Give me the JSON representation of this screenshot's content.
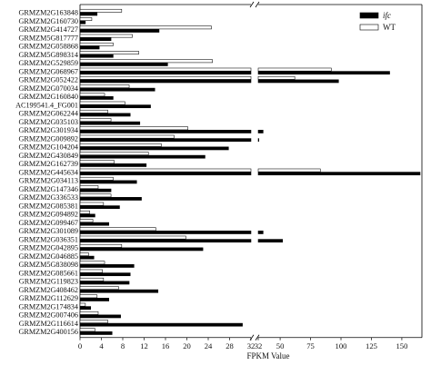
{
  "chart_data": {
    "type": "bar",
    "orientation": "horizontal",
    "xlabel": "FPKM Value",
    "x_axis_break": [
      32,
      32
    ],
    "x_ticks_low": [
      0,
      4,
      8,
      12,
      16,
      20,
      24,
      28,
      32
    ],
    "x_ticks_high": [
      32,
      50,
      75,
      100,
      125,
      150
    ],
    "x_tick_labels_low": [
      "0",
      "4",
      "8",
      "12",
      "16",
      "20",
      "24",
      "28",
      "32"
    ],
    "x_tick_labels_high": [
      "32",
      "50",
      "75",
      "100",
      "125",
      "150"
    ],
    "legend_position": "top-right",
    "series_colors": [
      "#000000",
      "#ffffff"
    ],
    "categories": [
      "GRMZM2G163848",
      "GRMZM2G160730",
      "GRMZM2G414727",
      "GRMZM5G817777",
      "GRMZM2G058868",
      "GRMZM5G898314",
      "GRMZM2G529859",
      "GRMZM2G068967",
      "GRMZM2G052422",
      "GRMZM2G070034",
      "GRMZM2G160840",
      "AC199541.4_FG001",
      "GRMZM2G062244",
      "GRMZM2G035103",
      "GRMZM2G301934",
      "GRMZM2G009892",
      "GRMZM2G104204",
      "GRMZM2G430849",
      "GRMZM2G162739",
      "GRMZM2G445634",
      "GRMZM2G034113",
      "GRMZM2G147346",
      "GRMZM2G336533",
      "GRMZM2G085381",
      "GRMZM2G094892",
      "GRMZM2G099467",
      "GRMZM2G301089",
      "GRMZM2G036351",
      "GRMZM2G042895",
      "GRMZM2G046885",
      "GRMZM5G838098",
      "GRMZM2G085661",
      "GRMZM2G119823",
      "GRMZM2G408462",
      "GRMZM2G112629",
      "GRMZM2G174834",
      "GRMZM2G007406",
      "GRMZM2G116614",
      "GRMZM2G400156"
    ],
    "series": [
      {
        "name": "ifc",
        "values": [
          3.2,
          1.0,
          14.8,
          5.8,
          3.6,
          6.2,
          16.4,
          140,
          98,
          14.0,
          6.2,
          13.2,
          9.4,
          11.2,
          36,
          32.5,
          27.8,
          23.4,
          12.4,
          165,
          10.6,
          5.8,
          11.5,
          7.4,
          2.8,
          5.4,
          36,
          52,
          23.0,
          2.6,
          10.1,
          9.4,
          9.2,
          14.6,
          5.4,
          2.0,
          7.6,
          30.4,
          6.0
        ]
      },
      {
        "name": "WT",
        "values": [
          7.8,
          2.2,
          24.6,
          9.8,
          6.2,
          11.0,
          24.8,
          92,
          62,
          9.2,
          4.6,
          8.4,
          5.2,
          5.8,
          20.2,
          17.6,
          15.2,
          12.8,
          6.4,
          83,
          6.2,
          3.4,
          5.8,
          4.4,
          1.8,
          2.4,
          14.2,
          19.8,
          7.8,
          1.6,
          4.6,
          4.2,
          4.4,
          7.2,
          3.2,
          1.0,
          3.4,
          5.2,
          2.8
        ]
      }
    ]
  }
}
